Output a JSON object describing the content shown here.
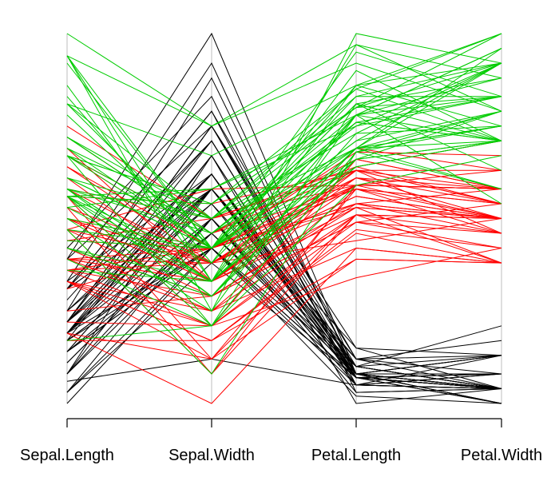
{
  "chart_data": {
    "type": "parallel_coordinates",
    "title": "",
    "dimensions": [
      "Sepal.Length",
      "Sepal.Width",
      "Petal.Length",
      "Petal.Width"
    ],
    "value_scale": "each axis scaled to [0,1] (bottom=0, top=1)",
    "grid": false,
    "legend": "none",
    "groups": [
      {
        "color": "#000000",
        "lines": [
          [
            0.22,
            0.62,
            0.07,
            0.04
          ],
          [
            0.17,
            0.42,
            0.07,
            0.04
          ],
          [
            0.11,
            0.5,
            0.05,
            0.04
          ],
          [
            0.08,
            0.46,
            0.08,
            0.04
          ],
          [
            0.19,
            0.67,
            0.07,
            0.04
          ],
          [
            0.31,
            0.79,
            0.12,
            0.13
          ],
          [
            0.08,
            0.58,
            0.07,
            0.08
          ],
          [
            0.19,
            0.58,
            0.08,
            0.04
          ],
          [
            0.03,
            0.38,
            0.07,
            0.04
          ],
          [
            0.17,
            0.46,
            0.08,
            0.0
          ],
          [
            0.31,
            0.71,
            0.08,
            0.04
          ],
          [
            0.14,
            0.58,
            0.1,
            0.04
          ],
          [
            0.14,
            0.42,
            0.07,
            0.0
          ],
          [
            0.0,
            0.42,
            0.02,
            0.0
          ],
          [
            0.42,
            0.83,
            0.03,
            0.04
          ],
          [
            0.39,
            1.0,
            0.08,
            0.13
          ],
          [
            0.31,
            0.79,
            0.05,
            0.13
          ],
          [
            0.22,
            0.62,
            0.07,
            0.08
          ],
          [
            0.39,
            0.75,
            0.12,
            0.08
          ],
          [
            0.22,
            0.75,
            0.08,
            0.08
          ],
          [
            0.31,
            0.58,
            0.12,
            0.04
          ],
          [
            0.22,
            0.71,
            0.08,
            0.13
          ],
          [
            0.08,
            0.67,
            0.0,
            0.04
          ],
          [
            0.22,
            0.54,
            0.12,
            0.17
          ],
          [
            0.14,
            0.58,
            0.15,
            0.04
          ],
          [
            0.19,
            0.42,
            0.1,
            0.04
          ],
          [
            0.19,
            0.58,
            0.1,
            0.13
          ],
          [
            0.25,
            0.62,
            0.08,
            0.04
          ],
          [
            0.25,
            0.58,
            0.07,
            0.04
          ],
          [
            0.11,
            0.5,
            0.1,
            0.04
          ],
          [
            0.14,
            0.46,
            0.1,
            0.04
          ],
          [
            0.31,
            0.58,
            0.08,
            0.13
          ],
          [
            0.25,
            0.88,
            0.08,
            0.0
          ],
          [
            0.33,
            0.92,
            0.07,
            0.04
          ],
          [
            0.17,
            0.46,
            0.08,
            0.0
          ],
          [
            0.19,
            0.5,
            0.03,
            0.04
          ],
          [
            0.33,
            0.62,
            0.05,
            0.04
          ],
          [
            0.17,
            0.67,
            0.07,
            0.0
          ],
          [
            0.03,
            0.42,
            0.05,
            0.04
          ],
          [
            0.22,
            0.58,
            0.08,
            0.04
          ],
          [
            0.19,
            0.62,
            0.05,
            0.08
          ],
          [
            0.06,
            0.12,
            0.05,
            0.08
          ],
          [
            0.03,
            0.5,
            0.05,
            0.04
          ],
          [
            0.19,
            0.62,
            0.1,
            0.21
          ],
          [
            0.22,
            0.75,
            0.15,
            0.13
          ],
          [
            0.14,
            0.42,
            0.07,
            0.08
          ],
          [
            0.22,
            0.75,
            0.1,
            0.04
          ],
          [
            0.08,
            0.5,
            0.07,
            0.04
          ],
          [
            0.28,
            0.71,
            0.08,
            0.04
          ],
          [
            0.19,
            0.54,
            0.07,
            0.04
          ]
        ]
      },
      {
        "color": "#ff0000",
        "lines": [
          [
            0.75,
            0.5,
            0.63,
            0.54
          ],
          [
            0.58,
            0.5,
            0.59,
            0.58
          ],
          [
            0.72,
            0.46,
            0.66,
            0.58
          ],
          [
            0.33,
            0.12,
            0.51,
            0.5
          ],
          [
            0.61,
            0.33,
            0.61,
            0.58
          ],
          [
            0.39,
            0.33,
            0.59,
            0.5
          ],
          [
            0.56,
            0.54,
            0.63,
            0.63
          ],
          [
            0.17,
            0.17,
            0.39,
            0.38
          ],
          [
            0.64,
            0.38,
            0.61,
            0.5
          ],
          [
            0.25,
            0.29,
            0.49,
            0.54
          ],
          [
            0.19,
            0.0,
            0.42,
            0.38
          ],
          [
            0.44,
            0.42,
            0.54,
            0.58
          ],
          [
            0.47,
            0.08,
            0.51,
            0.38
          ],
          [
            0.5,
            0.38,
            0.63,
            0.54
          ],
          [
            0.36,
            0.38,
            0.44,
            0.5
          ],
          [
            0.67,
            0.46,
            0.58,
            0.54
          ],
          [
            0.36,
            0.42,
            0.59,
            0.58
          ],
          [
            0.42,
            0.29,
            0.53,
            0.38
          ],
          [
            0.53,
            0.08,
            0.59,
            0.58
          ],
          [
            0.36,
            0.21,
            0.49,
            0.42
          ],
          [
            0.44,
            0.5,
            0.64,
            0.71
          ],
          [
            0.5,
            0.33,
            0.51,
            0.5
          ],
          [
            0.56,
            0.21,
            0.66,
            0.58
          ],
          [
            0.5,
            0.33,
            0.63,
            0.46
          ],
          [
            0.58,
            0.38,
            0.56,
            0.5
          ],
          [
            0.64,
            0.42,
            0.58,
            0.54
          ],
          [
            0.69,
            0.33,
            0.64,
            0.54
          ],
          [
            0.67,
            0.42,
            0.68,
            0.67
          ],
          [
            0.47,
            0.38,
            0.59,
            0.58
          ],
          [
            0.39,
            0.25,
            0.42,
            0.38
          ],
          [
            0.33,
            0.17,
            0.47,
            0.42
          ],
          [
            0.33,
            0.17,
            0.46,
            0.38
          ],
          [
            0.42,
            0.29,
            0.49,
            0.46
          ],
          [
            0.47,
            0.29,
            0.69,
            0.63
          ],
          [
            0.31,
            0.42,
            0.59,
            0.58
          ],
          [
            0.47,
            0.58,
            0.59,
            0.63
          ],
          [
            0.67,
            0.46,
            0.63,
            0.58
          ],
          [
            0.56,
            0.12,
            0.58,
            0.5
          ],
          [
            0.36,
            0.42,
            0.53,
            0.5
          ],
          [
            0.33,
            0.21,
            0.51,
            0.5
          ],
          [
            0.33,
            0.25,
            0.58,
            0.46
          ],
          [
            0.5,
            0.42,
            0.61,
            0.54
          ],
          [
            0.42,
            0.25,
            0.51,
            0.46
          ],
          [
            0.19,
            0.12,
            0.39,
            0.38
          ],
          [
            0.36,
            0.29,
            0.54,
            0.5
          ],
          [
            0.39,
            0.42,
            0.54,
            0.46
          ],
          [
            0.39,
            0.38,
            0.54,
            0.5
          ],
          [
            0.53,
            0.38,
            0.56,
            0.5
          ],
          [
            0.22,
            0.21,
            0.34,
            0.42
          ],
          [
            0.39,
            0.33,
            0.53,
            0.5
          ]
        ]
      },
      {
        "color": "#00cc00",
        "lines": [
          [
            0.56,
            0.54,
            0.85,
            1.0
          ],
          [
            0.42,
            0.29,
            0.69,
            0.75
          ],
          [
            0.78,
            0.42,
            0.83,
            0.83
          ],
          [
            0.56,
            0.38,
            0.78,
            0.71
          ],
          [
            0.61,
            0.42,
            0.81,
            0.88
          ],
          [
            0.92,
            0.42,
            0.95,
            0.83
          ],
          [
            0.17,
            0.21,
            0.59,
            0.67
          ],
          [
            0.83,
            0.38,
            0.9,
            0.71
          ],
          [
            0.67,
            0.21,
            0.81,
            0.71
          ],
          [
            0.81,
            0.67,
            0.86,
            1.0
          ],
          [
            0.61,
            0.5,
            0.69,
            0.79
          ],
          [
            0.58,
            0.29,
            0.73,
            0.75
          ],
          [
            0.69,
            0.42,
            0.76,
            0.83
          ],
          [
            0.39,
            0.21,
            0.68,
            0.79
          ],
          [
            0.42,
            0.33,
            0.69,
            0.96
          ],
          [
            0.58,
            0.5,
            0.73,
            0.92
          ],
          [
            0.61,
            0.42,
            0.76,
            0.71
          ],
          [
            0.94,
            0.75,
            0.97,
            0.88
          ],
          [
            0.94,
            0.25,
            1.0,
            0.92
          ],
          [
            0.47,
            0.08,
            0.68,
            0.58
          ],
          [
            0.72,
            0.5,
            0.8,
            0.92
          ],
          [
            0.36,
            0.33,
            0.66,
            0.79
          ],
          [
            0.94,
            0.33,
            0.97,
            0.79
          ],
          [
            0.56,
            0.29,
            0.66,
            0.71
          ],
          [
            0.67,
            0.54,
            0.8,
            0.83
          ],
          [
            0.81,
            0.5,
            0.85,
            0.71
          ],
          [
            0.53,
            0.33,
            0.64,
            0.71
          ],
          [
            0.5,
            0.42,
            0.66,
            0.71
          ],
          [
            0.58,
            0.33,
            0.78,
            0.83
          ],
          [
            0.81,
            0.42,
            0.81,
            0.63
          ],
          [
            0.86,
            0.33,
            0.86,
            0.75
          ],
          [
            1.0,
            0.75,
            0.92,
            0.79
          ],
          [
            0.58,
            0.33,
            0.78,
            0.88
          ],
          [
            0.56,
            0.33,
            0.69,
            0.58
          ],
          [
            0.5,
            0.25,
            0.78,
            0.54
          ],
          [
            0.94,
            0.42,
            0.86,
            0.92
          ],
          [
            0.56,
            0.58,
            0.78,
            0.96
          ],
          [
            0.58,
            0.46,
            0.76,
            0.71
          ],
          [
            0.47,
            0.42,
            0.64,
            0.71
          ],
          [
            0.72,
            0.46,
            0.75,
            0.83
          ],
          [
            0.67,
            0.46,
            0.78,
            0.96
          ],
          [
            0.72,
            0.46,
            0.69,
            0.92
          ],
          [
            0.42,
            0.29,
            0.69,
            0.75
          ],
          [
            0.69,
            0.5,
            0.83,
            0.92
          ],
          [
            0.67,
            0.54,
            0.8,
            1.0
          ],
          [
            0.67,
            0.42,
            0.71,
            0.92
          ],
          [
            0.56,
            0.21,
            0.68,
            0.75
          ],
          [
            0.61,
            0.42,
            0.71,
            0.79
          ],
          [
            0.53,
            0.58,
            0.75,
            0.92
          ],
          [
            0.44,
            0.42,
            0.69,
            0.71
          ]
        ]
      }
    ]
  }
}
